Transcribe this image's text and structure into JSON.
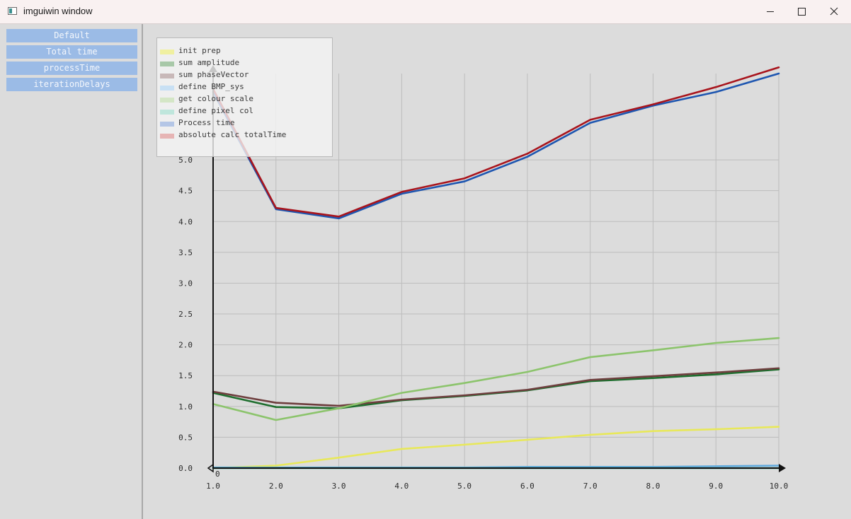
{
  "window": {
    "title": "imguiwin window",
    "icon": "app-window-icon",
    "controls": [
      "minimize-icon",
      "maximize-icon",
      "close-icon"
    ]
  },
  "sidebar": {
    "buttons": [
      {
        "label": "Default"
      },
      {
        "label": "Total time"
      },
      {
        "label": "processTime"
      },
      {
        "label": "iterationDelays"
      }
    ]
  },
  "chart_data": {
    "type": "line",
    "title": "",
    "xlabel": "",
    "ylabel": "",
    "xlim": [
      1,
      10
    ],
    "ylim": [
      0,
      6.4
    ],
    "grid": true,
    "legend": "top-left",
    "origin_label": "0",
    "x_ticks": [
      "1.0",
      "2.0",
      "3.0",
      "4.0",
      "5.0",
      "6.0",
      "7.0",
      "8.0",
      "9.0",
      "10.0"
    ],
    "y_ticks": [
      "0.0",
      "0.5",
      "1.0",
      "1.5",
      "2.0",
      "2.5",
      "3.0",
      "3.5",
      "4.0",
      "4.5",
      "5.0"
    ],
    "x": [
      1,
      2,
      3,
      4,
      5,
      6,
      7,
      8,
      9,
      10
    ],
    "series": [
      {
        "name": "init prep",
        "color": "#e8e85a",
        "legend_color": "#f0f0a0",
        "values": [
          0.0,
          0.04,
          0.17,
          0.31,
          0.38,
          0.46,
          0.54,
          0.6,
          0.63,
          0.67
        ]
      },
      {
        "name": "sum amplitude",
        "color": "#1e6e2e",
        "legend_color": "#a8c8a8",
        "values": [
          1.22,
          0.99,
          0.97,
          1.1,
          1.17,
          1.26,
          1.41,
          1.46,
          1.52,
          1.6
        ]
      },
      {
        "name": "sum phaseVector",
        "color": "#6e3e3e",
        "legend_color": "#c8b8b8",
        "values": [
          1.24,
          1.06,
          1.01,
          1.11,
          1.18,
          1.27,
          1.43,
          1.49,
          1.55,
          1.62
        ]
      },
      {
        "name": "define BMP_sys",
        "color": "#62aade",
        "legend_color": "#c8e0f4",
        "values": [
          0.01,
          0.01,
          0.01,
          0.01,
          0.01,
          0.02,
          0.02,
          0.02,
          0.03,
          0.04
        ]
      },
      {
        "name": "get colour scale",
        "color": "#8cc46c",
        "legend_color": "#d4e6c6",
        "values": [
          1.04,
          0.78,
          0.97,
          1.22,
          1.38,
          1.56,
          1.8,
          1.91,
          2.03,
          2.11
        ]
      },
      {
        "name": "define pixel col",
        "color": "#2aa690",
        "legend_color": "#bfe6dc",
        "values": [
          0.0,
          0.0,
          0.0,
          0.0,
          0.0,
          0.0,
          0.0,
          0.0,
          0.0,
          0.0
        ]
      },
      {
        "name": "Process time",
        "color": "#1e56b0",
        "legend_color": "#b4c6e6",
        "values": [
          6.1,
          4.2,
          4.05,
          4.45,
          4.65,
          5.05,
          5.6,
          5.88,
          6.1,
          6.4
        ]
      },
      {
        "name": "absolute calc totalTime",
        "color": "#a8141c",
        "legend_color": "#e6b4b4",
        "values": [
          6.15,
          4.22,
          4.08,
          4.48,
          4.7,
          5.1,
          5.65,
          5.9,
          6.18,
          6.5
        ]
      }
    ]
  }
}
